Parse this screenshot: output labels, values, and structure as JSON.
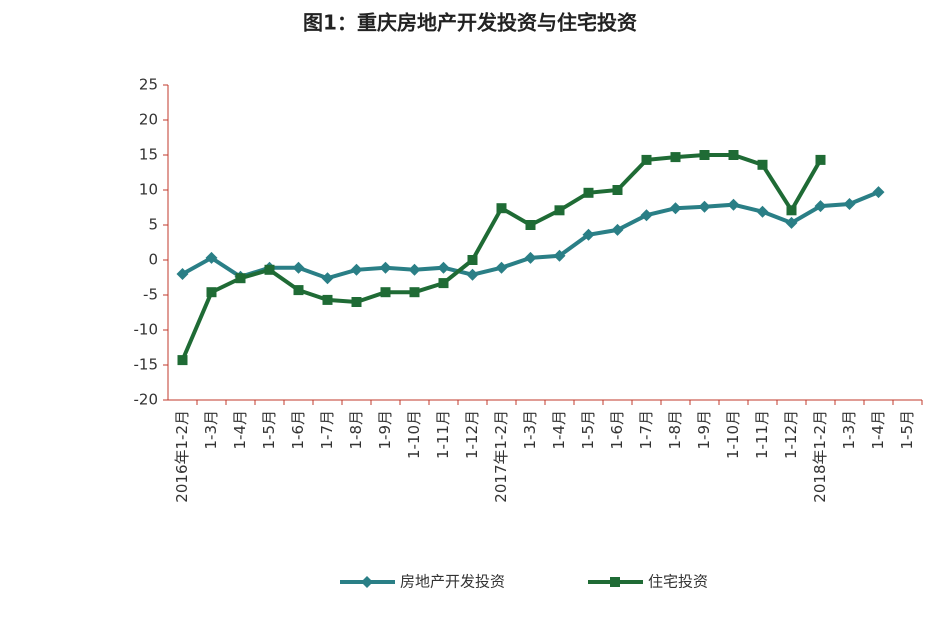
{
  "chart_data": {
    "type": "line",
    "title": "图1：重庆房地产开发投资与住宅投资",
    "categories": [
      "2016年1-2月",
      "1-3月",
      "1-4月",
      "1-5月",
      "1-6月",
      "1-7月",
      "1-8月",
      "1-9月",
      "1-10月",
      "1-11月",
      "1-12月",
      "2017年1-2月",
      "1-3月",
      "1-4月",
      "1-5月",
      "1-6月",
      "1-7月",
      "1-8月",
      "1-9月",
      "1-10月",
      "1-11月",
      "1-12月",
      "2018年1-2月",
      "1-3月",
      "1-4月",
      "1-5月"
    ],
    "series": [
      {
        "name": "房地产开发投资",
        "color": "#2a7f86",
        "marker": "diamond",
        "values": [
          -2,
          0.3,
          -2.4,
          -1.1,
          -1.1,
          -2.6,
          -1.4,
          -1.1,
          -1.4,
          -1.1,
          -2.1,
          -1.1,
          0.3,
          0.6,
          3.6,
          4.3,
          6.4,
          7.4,
          7.6,
          7.9,
          6.9,
          5.3,
          7.7,
          8,
          9.7,
          null
        ]
      },
      {
        "name": "住宅投资",
        "color": "#1f6b35",
        "marker": "square",
        "values": [
          -14.3,
          -4.6,
          -2.6,
          -1.4,
          -4.3,
          -5.7,
          -6,
          -4.6,
          -4.6,
          -3.3,
          0,
          7.4,
          5,
          7.1,
          9.6,
          10,
          14.3,
          14.7,
          15,
          15,
          13.6,
          7.1,
          14.3,
          null,
          null,
          null
        ]
      }
    ],
    "ylim": [
      -20,
      25
    ],
    "yticks": [
      -20,
      -15,
      -10,
      -5,
      0,
      5,
      10,
      15,
      20,
      25
    ]
  }
}
